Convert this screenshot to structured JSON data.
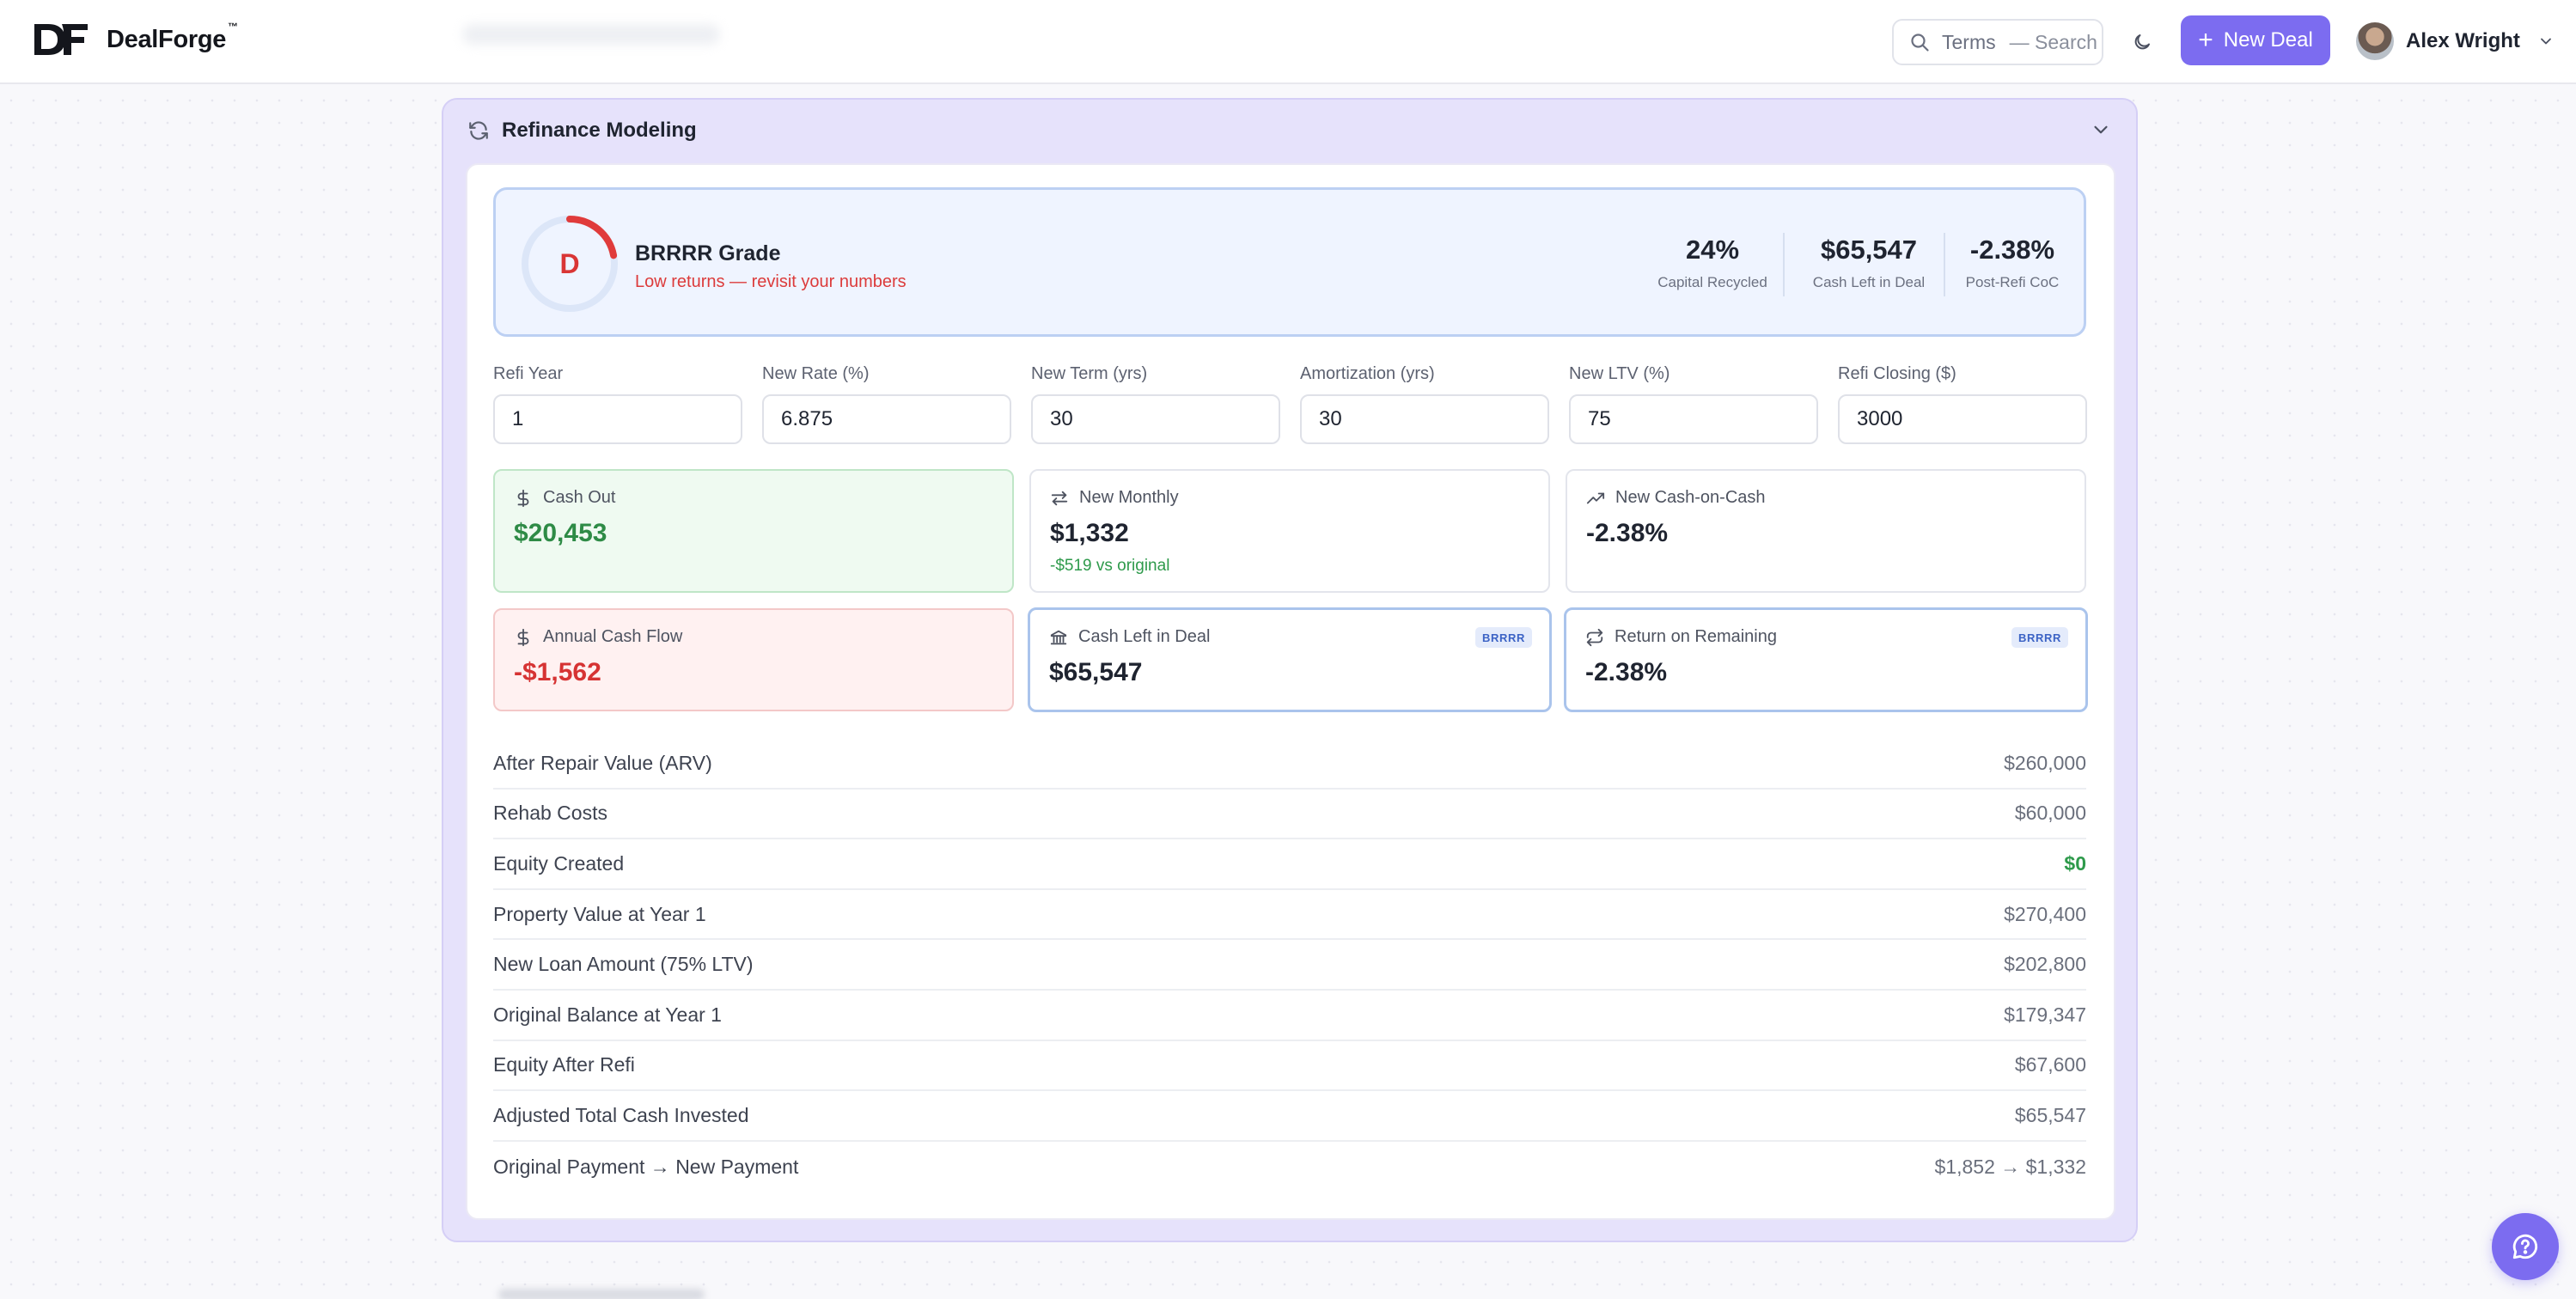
{
  "header": {
    "logo_text": "DealForge",
    "logo_tm": "™",
    "search_label": "Terms",
    "search_hint": "— Search",
    "new_deal_label": "New Deal",
    "user_name": "Alex Wright"
  },
  "card": {
    "title": "Refinance Modeling",
    "grade": {
      "letter": "D",
      "title": "BRRRR Grade",
      "subtitle": "Low returns — revisit your numbers",
      "score_fraction": 0.22
    },
    "metrics": [
      {
        "value": "24%",
        "label": "Capital Recycled"
      },
      {
        "value": "$65,547",
        "label": "Cash Left in Deal"
      },
      {
        "value": "-2.38%",
        "label": "Post-Refi CoC"
      }
    ],
    "inputs": [
      {
        "label": "Refi Year",
        "value": "1"
      },
      {
        "label": "New Rate (%)",
        "value": "6.875"
      },
      {
        "label": "New Term (yrs)",
        "value": "30"
      },
      {
        "label": "Amortization (yrs)",
        "value": "30"
      },
      {
        "label": "New LTV (%)",
        "value": "75"
      },
      {
        "label": "Refi Closing ($)",
        "value": "3000"
      }
    ],
    "stats": {
      "cash_out": {
        "label": "Cash Out",
        "value": "$20,453"
      },
      "new_monthly": {
        "label": "New Monthly",
        "value": "$1,332",
        "note": "-$519 vs original"
      },
      "new_coc": {
        "label": "New Cash-on-Cash",
        "value": "-2.38%"
      },
      "annual_cf": {
        "label": "Annual Cash Flow",
        "value": "-$1,562"
      },
      "cash_left": {
        "label": "Cash Left in Deal",
        "value": "$65,547",
        "badge": "BRRRR"
      },
      "return_remaining": {
        "label": "Return on Remaining",
        "value": "-2.38%",
        "badge": "BRRRR"
      }
    },
    "rows": [
      {
        "label": "After Repair Value (ARV)",
        "value": "$260,000"
      },
      {
        "label": "Rehab Costs",
        "value": "$60,000"
      },
      {
        "label": "Equity Created",
        "value": "$0"
      },
      {
        "label": "Property Value at Year 1",
        "value": "$270,400"
      },
      {
        "label": "New Loan Amount (75% LTV)",
        "value": "$202,800"
      },
      {
        "label": "Original Balance at Year 1",
        "value": "$179,347"
      },
      {
        "label": "Equity After Refi",
        "value": "$67,600"
      },
      {
        "label": "Adjusted Total Cash Invested",
        "value": "$65,547"
      },
      {
        "label": "Original Payment → New Payment",
        "value": "$1,852 → $1,332"
      }
    ]
  },
  "colors": {
    "accent": "#7c6cf0",
    "grade_red": "#e03b3b",
    "positive_green": "#2e9a4b",
    "negative_red": "#d63333"
  }
}
